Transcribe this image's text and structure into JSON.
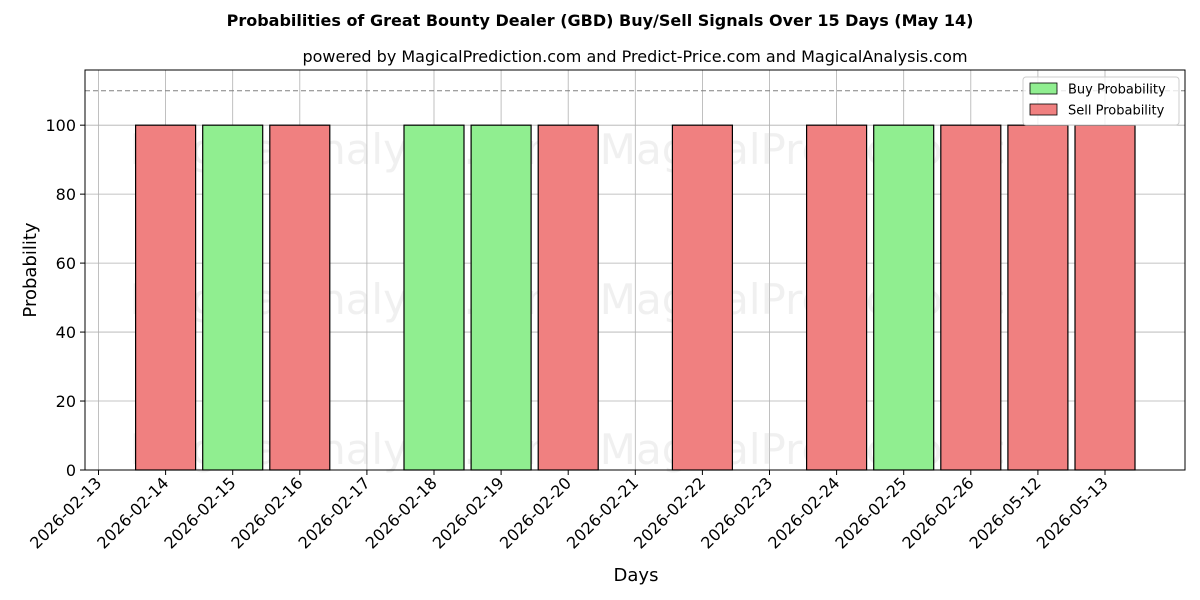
{
  "chart_data": {
    "type": "bar",
    "title": "Probabilities of Great Bounty Dealer (GBD) Buy/Sell Signals Over 15 Days (May 14)",
    "subtitle": "powered by MagicalPrediction.com and Predict-Price.com and MagicalAnalysis.com",
    "xlabel": "Days",
    "ylabel": "Probability",
    "ylim": [
      0,
      116
    ],
    "yticks": [
      0,
      20,
      40,
      60,
      80,
      100
    ],
    "reference_line": 110,
    "grid": true,
    "legend_position": "top-right",
    "categories": [
      "2026-02-13",
      "2026-02-14",
      "2026-02-15",
      "2026-02-16",
      "2026-02-17",
      "2026-02-18",
      "2026-02-19",
      "2026-02-20",
      "2026-02-21",
      "2026-02-22",
      "2026-02-23",
      "2026-02-24",
      "2026-02-25",
      "2026-02-26",
      "2026-05-12",
      "2026-05-13"
    ],
    "bars": [
      {
        "x": "2026-02-14",
        "series": "Sell Probability",
        "value": 100
      },
      {
        "x": "2026-02-15",
        "series": "Buy Probability",
        "value": 100
      },
      {
        "x": "2026-02-16",
        "series": "Sell Probability",
        "value": 100
      },
      {
        "x": "2026-02-18",
        "series": "Buy Probability",
        "value": 100
      },
      {
        "x": "2026-02-19",
        "series": "Buy Probability",
        "value": 100
      },
      {
        "x": "2026-02-20",
        "series": "Sell Probability",
        "value": 100
      },
      {
        "x": "2026-02-22",
        "series": "Sell Probability",
        "value": 100
      },
      {
        "x": "2026-02-24",
        "series": "Sell Probability",
        "value": 100
      },
      {
        "x": "2026-02-25",
        "series": "Buy Probability",
        "value": 100
      },
      {
        "x": "2026-02-26",
        "series": "Sell Probability",
        "value": 100
      },
      {
        "x": "2026-05-12",
        "series": "Sell Probability",
        "value": 100
      },
      {
        "x": "2026-05-13",
        "series": "Sell Probability",
        "value": 100
      }
    ],
    "series": [
      {
        "name": "Buy Probability",
        "color": "#90ee90"
      },
      {
        "name": "Sell Probability",
        "color": "#f08080"
      }
    ],
    "watermarks": [
      "MagicalAnalysis.com",
      "MagicalPrediction.com"
    ]
  }
}
